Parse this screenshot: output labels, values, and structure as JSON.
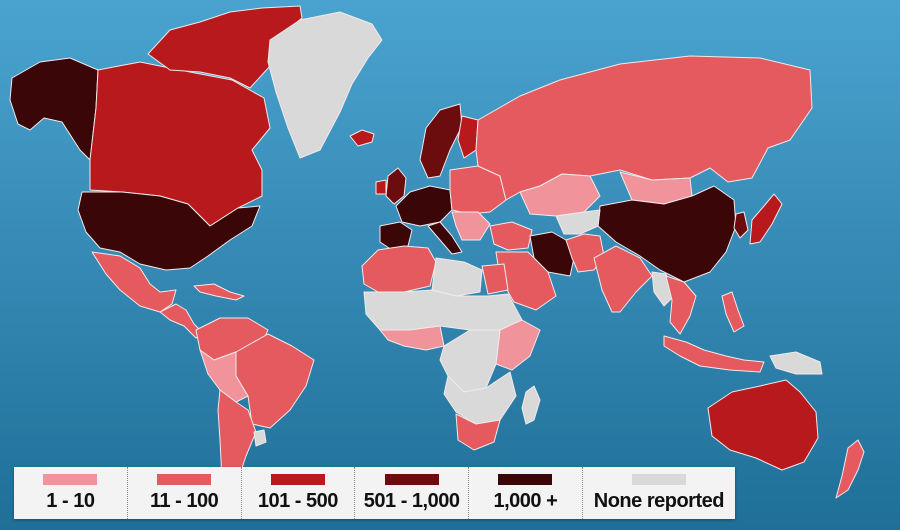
{
  "colors": {
    "ocean": "#2f8ab8",
    "land_border": "#f3e9e9",
    "c1_10": "#f0939a",
    "c11_100": "#e55a5e",
    "c101_500": "#b8191d",
    "c501_1000": "#6b0d0f",
    "c1000_plus": "#3b0608",
    "none_reported": "#d9d9d9"
  },
  "legend": [
    {
      "label": "1 - 10",
      "color": "#f0939a"
    },
    {
      "label": "11 - 100",
      "color": "#e55a5e"
    },
    {
      "label": "101 - 500",
      "color": "#b8191d"
    },
    {
      "label": "501 - 1,000",
      "color": "#6b0d0f"
    },
    {
      "label": "1,000 +",
      "color": "#3b0608"
    },
    {
      "label": "None reported",
      "color": "#d9d9d9"
    }
  ],
  "regions": [
    {
      "name": "alaska",
      "category": "c1000_plus"
    },
    {
      "name": "canada",
      "category": "c101_500"
    },
    {
      "name": "canadian-arctic-islands",
      "category": "c101_500"
    },
    {
      "name": "greenland",
      "category": "none_reported"
    },
    {
      "name": "iceland",
      "category": "c101_500"
    },
    {
      "name": "usa",
      "category": "c1000_plus"
    },
    {
      "name": "mexico",
      "category": "c11_100"
    },
    {
      "name": "central-america",
      "category": "c11_100"
    },
    {
      "name": "caribbean-islands",
      "category": "c11_100"
    },
    {
      "name": "colombia-venezuela",
      "category": "c11_100"
    },
    {
      "name": "brazil",
      "category": "c11_100"
    },
    {
      "name": "peru-bolivia",
      "category": "c1_10"
    },
    {
      "name": "southern-cone",
      "category": "c11_100"
    },
    {
      "name": "uruguay",
      "category": "none_reported"
    },
    {
      "name": "uk",
      "category": "c501_1000"
    },
    {
      "name": "ireland",
      "category": "c101_500"
    },
    {
      "name": "scandinavia",
      "category": "c501_1000"
    },
    {
      "name": "finland",
      "category": "c101_500"
    },
    {
      "name": "western-europe",
      "category": "c1000_plus"
    },
    {
      "name": "iberia",
      "category": "c1000_plus"
    },
    {
      "name": "italy",
      "category": "c1000_plus"
    },
    {
      "name": "eastern-europe",
      "category": "c11_100"
    },
    {
      "name": "balkans",
      "category": "c1_10"
    },
    {
      "name": "russia",
      "category": "c11_100"
    },
    {
      "name": "kazakhstan",
      "category": "c1_10"
    },
    {
      "name": "mongolia",
      "category": "c1_10"
    },
    {
      "name": "china",
      "category": "c1000_plus"
    },
    {
      "name": "korea",
      "category": "c501_1000"
    },
    {
      "name": "japan",
      "category": "c101_500"
    },
    {
      "name": "middle-east",
      "category": "c11_100"
    },
    {
      "name": "iran",
      "category": "c1000_plus"
    },
    {
      "name": "arabia",
      "category": "c11_100"
    },
    {
      "name": "central-asia",
      "category": "none_reported"
    },
    {
      "name": "afghanistan-pakistan",
      "category": "c11_100"
    },
    {
      "name": "india",
      "category": "c11_100"
    },
    {
      "name": "southeast-asia",
      "category": "c11_100"
    },
    {
      "name": "myanmar-laos",
      "category": "none_reported"
    },
    {
      "name": "indonesia",
      "category": "c11_100"
    },
    {
      "name": "philippines",
      "category": "c11_100"
    },
    {
      "name": "new-guinea",
      "category": "none_reported"
    },
    {
      "name": "north-africa-west",
      "category": "c11_100"
    },
    {
      "name": "libya",
      "category": "none_reported"
    },
    {
      "name": "egypt",
      "category": "c11_100"
    },
    {
      "name": "sahel",
      "category": "none_reported"
    },
    {
      "name": "west-africa",
      "category": "c1_10"
    },
    {
      "name": "central-africa",
      "category": "none_reported"
    },
    {
      "name": "east-africa",
      "category": "c1_10"
    },
    {
      "name": "southern-africa",
      "category": "none_reported"
    },
    {
      "name": "south-africa",
      "category": "c11_100"
    },
    {
      "name": "madagascar",
      "category": "none_reported"
    },
    {
      "name": "australia",
      "category": "c101_500"
    },
    {
      "name": "new-zealand",
      "category": "c11_100"
    }
  ]
}
